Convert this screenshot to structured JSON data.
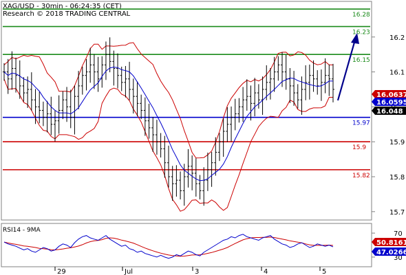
{
  "header": {
    "line1": "XAG/USD - 30min - 06:24:35 (CET)",
    "line2": "Research © 2018 TRADING CENTRAL"
  },
  "colors": {
    "up_level": "#1a8a1a",
    "pivot": "#0000cc",
    "down_level": "#cc0000",
    "bars": "#000000",
    "bollinger": "#cc0000",
    "ma": "#0000cc",
    "rsi": "#0000cc",
    "rsi_ma": "#cc0000",
    "arrow": "#00008b",
    "axis_label_bg": "#cc0000",
    "ma_label_bg": "#0000cc",
    "last_label_bg": "#000000"
  },
  "chart_data": [
    {
      "type": "ohlc",
      "title": "XAG/USD - 30min - 06:24:35 (CET)",
      "y_axis_ticks": [
        15.7,
        15.8,
        15.9,
        16.0,
        16.1,
        16.2
      ],
      "y_axis_tick_labels": [
        "15.7",
        "15.8",
        "15.9",
        "16",
        "16.1",
        "16.2"
      ],
      "x_axis_labels": [
        "29",
        "Jul",
        "3",
        "4",
        "5"
      ],
      "ylim": [
        15.68,
        16.3
      ],
      "levels": [
        {
          "value": 16.28,
          "label": "16.28",
          "kind": "resistance"
        },
        {
          "value": 16.23,
          "label": "16.23",
          "kind": "resistance"
        },
        {
          "value": 16.15,
          "label": "16.15",
          "kind": "resistance"
        },
        {
          "value": 15.97,
          "label": "15.97",
          "kind": "pivot"
        },
        {
          "value": 15.9,
          "label": "15.9",
          "kind": "support"
        },
        {
          "value": 15.82,
          "label": "15.82",
          "kind": "support"
        }
      ],
      "value_labels": [
        {
          "text": "16.0637",
          "kind": "bollinger"
        },
        {
          "text": "16.0595",
          "kind": "ma"
        },
        {
          "text": "16.048",
          "kind": "last"
        }
      ],
      "price_close": [
        16.1,
        16.08,
        16.11,
        16.09,
        16.06,
        16.04,
        16.05,
        16.02,
        16.0,
        15.99,
        15.97,
        15.98,
        15.95,
        15.96,
        15.99,
        16.02,
        16.0,
        15.97,
        16.03,
        16.06,
        16.09,
        16.1,
        16.12,
        16.1,
        16.08,
        16.12,
        16.15,
        16.13,
        16.11,
        16.09,
        16.07,
        16.08,
        16.05,
        16.03,
        16.01,
        15.99,
        15.96,
        15.94,
        15.92,
        15.9,
        15.88,
        15.84,
        15.8,
        15.78,
        15.79,
        15.76,
        15.8,
        15.83,
        15.81,
        15.78,
        15.76,
        15.79,
        15.82,
        15.84,
        15.87,
        15.9,
        15.93,
        15.95,
        15.97,
        15.98,
        16.0,
        16.02,
        16.03,
        16.01,
        16.04,
        16.02,
        16.05,
        16.07,
        16.08,
        16.1,
        16.12,
        16.1,
        16.08,
        16.06,
        16.04,
        16.02,
        16.05,
        16.07,
        16.09,
        16.08,
        16.06,
        16.07,
        16.09,
        16.08,
        16.05
      ]
    },
    {
      "type": "line",
      "title": "RSI14 - 9MA",
      "series_names": [
        "RSI14",
        "9MA"
      ],
      "y_axis_tick_labels": [
        "70",
        "30"
      ],
      "value_labels": [
        {
          "text": "50.8161",
          "kind": "ma"
        },
        {
          "text": "47.0266",
          "kind": "rsi"
        }
      ],
      "rsi_values": [
        55,
        52,
        50,
        48,
        45,
        42,
        44,
        40,
        38,
        42,
        46,
        44,
        40,
        42,
        48,
        52,
        50,
        46,
        54,
        60,
        64,
        66,
        62,
        60,
        58,
        62,
        66,
        60,
        56,
        52,
        48,
        50,
        44,
        42,
        38,
        40,
        36,
        34,
        32,
        30,
        33,
        30,
        28,
        30,
        34,
        32,
        36,
        40,
        38,
        34,
        32,
        38,
        42,
        46,
        50,
        54,
        58,
        60,
        64,
        62,
        66,
        68,
        64,
        62,
        60,
        58,
        62,
        64,
        66,
        60,
        56,
        52,
        50,
        46,
        48,
        52,
        54,
        50,
        46,
        48,
        52,
        50,
        48,
        50,
        47
      ]
    }
  ]
}
